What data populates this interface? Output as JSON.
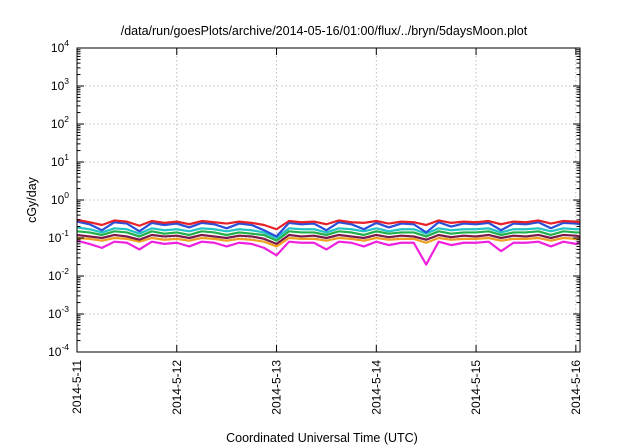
{
  "chart_data": {
    "type": "line",
    "title": "/data/run/goesPlots/archive/2014-05-16/01:00/flux/../bryn/5daysMoon.plot",
    "xlabel": "Coordinated Universal Time (UTC)",
    "ylabel": "cGy/day",
    "yscale": "log",
    "ylim": [
      0.0001,
      10000
    ],
    "xlim": [
      "2014-05-11T00:00",
      "2014-05-16T01:00"
    ],
    "grid": true,
    "xticks": [
      "2014-5-11",
      "2014-5-12",
      "2014-5-13",
      "2014-5-14",
      "2014-5-15",
      "2014-5-16"
    ],
    "yticks": [
      {
        "value": 0.0001,
        "base": "10",
        "exp": "-4"
      },
      {
        "value": 0.001,
        "base": "10",
        "exp": "-3"
      },
      {
        "value": 0.01,
        "base": "10",
        "exp": "-2"
      },
      {
        "value": 0.1,
        "base": "10",
        "exp": "-1"
      },
      {
        "value": 1,
        "base": "10",
        "exp": "0"
      },
      {
        "value": 10,
        "base": "10",
        "exp": "1"
      },
      {
        "value": 100,
        "base": "10",
        "exp": "2"
      },
      {
        "value": 1000,
        "base": "10",
        "exp": "3"
      },
      {
        "value": 10000,
        "base": "10",
        "exp": "4"
      }
    ],
    "x": [
      "2014-05-11T00:00",
      "2014-05-11T03:00",
      "2014-05-11T06:00",
      "2014-05-11T09:00",
      "2014-05-11T12:00",
      "2014-05-11T15:00",
      "2014-05-11T18:00",
      "2014-05-11T21:00",
      "2014-05-12T00:00",
      "2014-05-12T03:00",
      "2014-05-12T06:00",
      "2014-05-12T09:00",
      "2014-05-12T12:00",
      "2014-05-12T15:00",
      "2014-05-12T18:00",
      "2014-05-12T21:00",
      "2014-05-13T00:00",
      "2014-05-13T03:00",
      "2014-05-13T06:00",
      "2014-05-13T09:00",
      "2014-05-13T12:00",
      "2014-05-13T15:00",
      "2014-05-13T18:00",
      "2014-05-13T21:00",
      "2014-05-14T00:00",
      "2014-05-14T03:00",
      "2014-05-14T06:00",
      "2014-05-14T09:00",
      "2014-05-14T12:00",
      "2014-05-14T15:00",
      "2014-05-14T18:00",
      "2014-05-14T21:00",
      "2014-05-15T00:00",
      "2014-05-15T03:00",
      "2014-05-15T06:00",
      "2014-05-15T09:00",
      "2014-05-15T12:00",
      "2014-05-15T15:00",
      "2014-05-15T18:00",
      "2014-05-15T21:00",
      "2014-05-16T00:00",
      "2014-05-16T01:00"
    ],
    "series": [
      {
        "color": "#e8202a",
        "values": [
          0.3,
          0.26,
          0.22,
          0.29,
          0.27,
          0.21,
          0.28,
          0.25,
          0.27,
          0.23,
          0.28,
          0.26,
          0.24,
          0.27,
          0.25,
          0.22,
          0.17,
          0.28,
          0.26,
          0.27,
          0.23,
          0.29,
          0.26,
          0.25,
          0.28,
          0.24,
          0.27,
          0.26,
          0.22,
          0.29,
          0.25,
          0.27,
          0.26,
          0.28,
          0.23,
          0.27,
          0.26,
          0.29,
          0.24,
          0.28,
          0.27,
          0.26
        ]
      },
      {
        "color": "#2a4fd8",
        "values": [
          0.27,
          0.23,
          0.16,
          0.26,
          0.24,
          0.15,
          0.25,
          0.22,
          0.24,
          0.19,
          0.25,
          0.23,
          0.18,
          0.24,
          0.22,
          0.16,
          0.11,
          0.25,
          0.23,
          0.24,
          0.16,
          0.26,
          0.23,
          0.17,
          0.25,
          0.19,
          0.24,
          0.23,
          0.14,
          0.26,
          0.2,
          0.24,
          0.23,
          0.25,
          0.16,
          0.24,
          0.23,
          0.26,
          0.18,
          0.25,
          0.24,
          0.23
        ]
      },
      {
        "color": "#25c4c4",
        "values": [
          0.19,
          0.17,
          0.14,
          0.18,
          0.17,
          0.13,
          0.18,
          0.16,
          0.17,
          0.15,
          0.18,
          0.17,
          0.15,
          0.17,
          0.16,
          0.14,
          0.1,
          0.18,
          0.17,
          0.17,
          0.14,
          0.18,
          0.17,
          0.15,
          0.18,
          0.15,
          0.17,
          0.17,
          0.13,
          0.18,
          0.16,
          0.17,
          0.17,
          0.18,
          0.14,
          0.17,
          0.17,
          0.18,
          0.15,
          0.18,
          0.17,
          0.17
        ]
      },
      {
        "color": "#22b04a",
        "values": [
          0.15,
          0.14,
          0.12,
          0.15,
          0.14,
          0.11,
          0.15,
          0.13,
          0.14,
          0.12,
          0.15,
          0.14,
          0.12,
          0.14,
          0.13,
          0.12,
          0.085,
          0.15,
          0.14,
          0.14,
          0.12,
          0.15,
          0.14,
          0.12,
          0.15,
          0.13,
          0.14,
          0.14,
          0.11,
          0.15,
          0.13,
          0.14,
          0.14,
          0.15,
          0.12,
          0.14,
          0.14,
          0.15,
          0.12,
          0.15,
          0.14,
          0.14
        ]
      },
      {
        "color": "#7a1a4a",
        "values": [
          0.12,
          0.11,
          0.1,
          0.12,
          0.11,
          0.09,
          0.12,
          0.11,
          0.115,
          0.1,
          0.12,
          0.11,
          0.1,
          0.115,
          0.11,
          0.095,
          0.07,
          0.12,
          0.11,
          0.115,
          0.1,
          0.12,
          0.11,
          0.1,
          0.12,
          0.105,
          0.115,
          0.11,
          0.09,
          0.12,
          0.105,
          0.115,
          0.11,
          0.12,
          0.1,
          0.115,
          0.11,
          0.12,
          0.1,
          0.12,
          0.115,
          0.11
        ]
      },
      {
        "color": "#f0a020",
        "values": [
          0.1,
          0.095,
          0.085,
          0.1,
          0.095,
          0.08,
          0.1,
          0.09,
          0.095,
          0.085,
          0.1,
          0.095,
          0.085,
          0.095,
          0.09,
          0.08,
          0.06,
          0.1,
          0.095,
          0.095,
          0.085,
          0.1,
          0.095,
          0.085,
          0.1,
          0.09,
          0.095,
          0.095,
          0.075,
          0.1,
          0.09,
          0.095,
          0.095,
          0.1,
          0.085,
          0.095,
          0.095,
          0.1,
          0.085,
          0.1,
          0.095,
          0.095
        ]
      },
      {
        "color": "#ee22dd",
        "values": [
          0.085,
          0.07,
          0.055,
          0.08,
          0.075,
          0.05,
          0.08,
          0.07,
          0.075,
          0.06,
          0.08,
          0.075,
          0.06,
          0.075,
          0.07,
          0.055,
          0.035,
          0.08,
          0.075,
          0.075,
          0.05,
          0.08,
          0.075,
          0.06,
          0.08,
          0.065,
          0.075,
          0.075,
          0.02,
          0.08,
          0.065,
          0.075,
          0.075,
          0.08,
          0.045,
          0.075,
          0.075,
          0.08,
          0.06,
          0.08,
          0.07,
          0.075
        ]
      }
    ]
  }
}
